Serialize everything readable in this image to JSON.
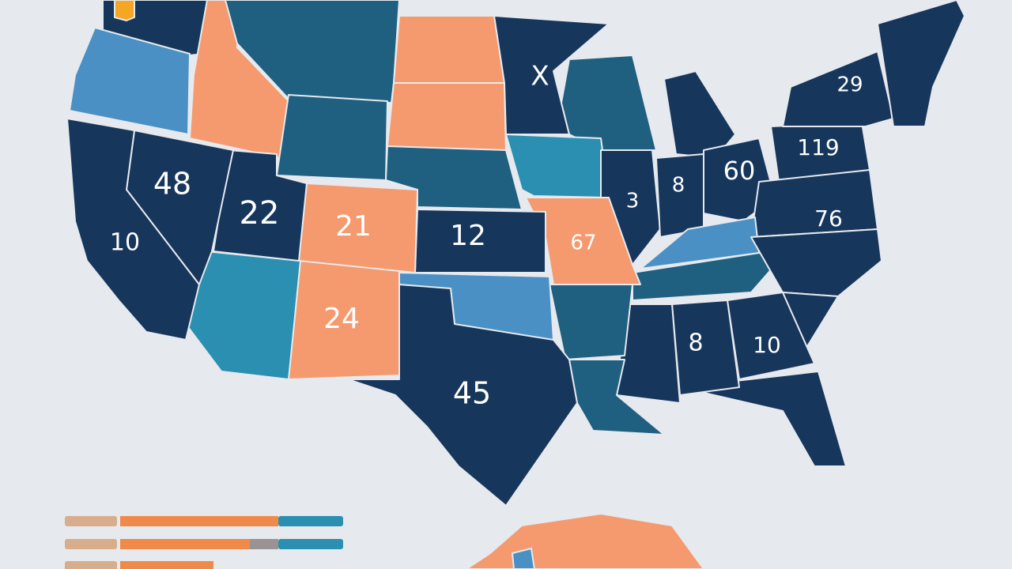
{
  "map": {
    "labels": [
      "X",
      "48",
      "10",
      "22",
      "21",
      "12",
      "24",
      "45",
      "67",
      "3",
      "8",
      "60",
      "119",
      "29",
      "76",
      "8",
      "10"
    ]
  }
}
